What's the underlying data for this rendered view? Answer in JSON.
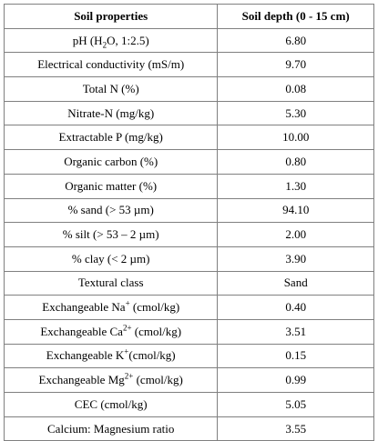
{
  "table": {
    "headers": [
      "Soil properties",
      "Soil depth (0 - 15 cm)"
    ],
    "rows": [
      {
        "property": [
          "pH (H",
          {
            "sub": "2"
          },
          "O, 1:2.5)"
        ],
        "value": "6.80"
      },
      {
        "property": [
          "Electrical conductivity (mS/m)"
        ],
        "value": "9.70"
      },
      {
        "property": [
          "Total N (%)"
        ],
        "value": "0.08"
      },
      {
        "property": [
          "Nitrate-N (mg/kg)"
        ],
        "value": "5.30"
      },
      {
        "property": [
          "Extractable P (mg/kg)"
        ],
        "value": "10.00"
      },
      {
        "property": [
          "Organic carbon (%)"
        ],
        "value": "0.80"
      },
      {
        "property": [
          "Organic matter (%)"
        ],
        "value": "1.30"
      },
      {
        "property": [
          "% sand (> 53 µm)"
        ],
        "value": "94.10"
      },
      {
        "property": [
          "% silt (> 53 – 2 µm)"
        ],
        "value": "2.00"
      },
      {
        "property": [
          "% clay (< 2 µm)"
        ],
        "value": "3.90"
      },
      {
        "property": [
          "Textural class"
        ],
        "value": "Sand"
      },
      {
        "property": [
          "Exchangeable Na",
          {
            "sup": "+"
          },
          " (cmol/kg)"
        ],
        "value": "0.40"
      },
      {
        "property": [
          "Exchangeable Ca",
          {
            "sup": "2+"
          },
          " (cmol/kg)"
        ],
        "value": "3.51"
      },
      {
        "property": [
          "Exchangeable K",
          {
            "sup": "+"
          },
          "(cmol/kg)"
        ],
        "value": "0.15"
      },
      {
        "property": [
          "Exchangeable Mg",
          {
            "sup": "2+"
          },
          " (cmol/kg)"
        ],
        "value": "0.99"
      },
      {
        "property": [
          "CEC (cmol/kg)"
        ],
        "value": "5.05"
      },
      {
        "property": [
          "Calcium: Magnesium ratio"
        ],
        "value": "3.55"
      }
    ]
  }
}
